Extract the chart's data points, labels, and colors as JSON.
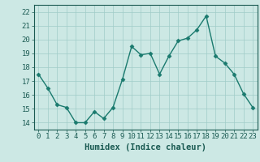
{
  "x": [
    0,
    1,
    2,
    3,
    4,
    5,
    6,
    7,
    8,
    9,
    10,
    11,
    12,
    13,
    14,
    15,
    16,
    17,
    18,
    19,
    20,
    21,
    22,
    23
  ],
  "y": [
    17.5,
    16.5,
    15.3,
    15.1,
    14.0,
    14.0,
    14.8,
    14.3,
    15.1,
    17.1,
    19.5,
    18.9,
    19.0,
    17.5,
    18.8,
    19.9,
    20.1,
    20.7,
    21.7,
    18.8,
    18.3,
    17.5,
    16.1,
    15.1
  ],
  "line_color": "#1a7a6e",
  "marker": "D",
  "marker_size": 2.5,
  "line_width": 1.0,
  "bg_color": "#cce8e4",
  "grid_color": "#a0ccc8",
  "xlabel": "Humidex (Indice chaleur)",
  "ylabel": "",
  "xlim": [
    -0.5,
    23.5
  ],
  "ylim": [
    13.5,
    22.5
  ],
  "yticks": [
    14,
    15,
    16,
    17,
    18,
    19,
    20,
    21,
    22
  ],
  "xticks": [
    0,
    1,
    2,
    3,
    4,
    5,
    6,
    7,
    8,
    9,
    10,
    11,
    12,
    13,
    14,
    15,
    16,
    17,
    18,
    19,
    20,
    21,
    22,
    23
  ],
  "tick_color": "#1a5a52",
  "label_color": "#1a5a52",
  "xlabel_fontsize": 7.5,
  "tick_fontsize": 6.5
}
